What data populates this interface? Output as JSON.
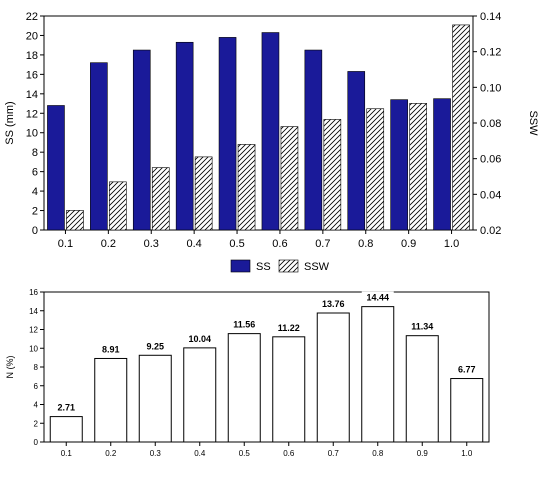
{
  "chart_data": [
    {
      "type": "bar",
      "categories": [
        "0.1",
        "0.2",
        "0.3",
        "0.4",
        "0.5",
        "0.6",
        "0.7",
        "0.8",
        "0.9",
        "1.0"
      ],
      "series": [
        {
          "name": "SS",
          "axis": "left",
          "color": "#1a1a99",
          "values": [
            12.8,
            17.2,
            18.5,
            19.3,
            19.8,
            20.3,
            18.5,
            16.3,
            13.4,
            13.5
          ]
        },
        {
          "name": "SSW",
          "axis": "right",
          "pattern": "hatch",
          "values": [
            0.031,
            0.047,
            0.055,
            0.061,
            0.068,
            0.078,
            0.082,
            0.088,
            0.091,
            0.135
          ]
        }
      ],
      "ylabel": "SS (mm)",
      "ylabel_right": "SSW",
      "ylim": [
        0,
        22
      ],
      "yticks": [
        "0",
        "2",
        "4",
        "6",
        "8",
        "10",
        "12",
        "14",
        "16",
        "18",
        "20",
        "22"
      ],
      "ylim_right": [
        0.02,
        0.14
      ],
      "yticks_right": [
        "0.02",
        "0.04",
        "0.06",
        "0.08",
        "0.10",
        "0.12",
        "0.14"
      ],
      "legend": "bottom",
      "grid": false
    },
    {
      "type": "bar",
      "categories": [
        "0.1",
        "0.2",
        "0.3",
        "0.4",
        "0.5",
        "0.6",
        "0.7",
        "0.8",
        "0.9",
        "1.0"
      ],
      "values": [
        2.71,
        8.91,
        9.25,
        10.04,
        11.56,
        11.22,
        13.76,
        14.44,
        11.34,
        6.77
      ],
      "data_labels": [
        "2.71",
        "8.91",
        "9.25",
        "10.04",
        "11.56",
        "11.22",
        "13.76",
        "14.44",
        "11.34",
        "6.77"
      ],
      "ylabel": "N (%)",
      "ylim": [
        0,
        16
      ],
      "yticks": [
        "0",
        "2",
        "4",
        "6",
        "8",
        "10",
        "12",
        "14",
        "16"
      ],
      "grid": false
    }
  ]
}
